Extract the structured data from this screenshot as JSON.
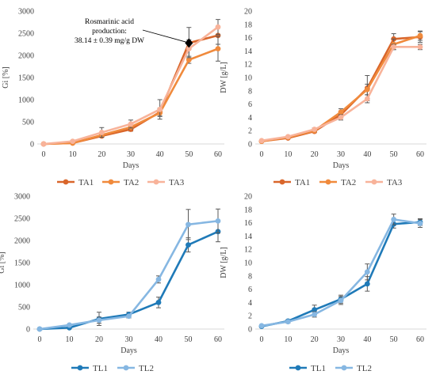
{
  "chart_data": [
    {
      "type": "line",
      "xlabel": "Days",
      "ylabel": "Gi [%]",
      "x": [
        0,
        10,
        20,
        30,
        40,
        50,
        60
      ],
      "xlim": [
        0,
        60
      ],
      "ylim": [
        0,
        3000
      ],
      "yticks": [
        0,
        500,
        1000,
        1500,
        2000,
        2500,
        3000
      ],
      "grid": false,
      "legend_position": "bottom",
      "series": [
        {
          "name": "TA1",
          "color": "#d9662b",
          "values": [
            0,
            20,
            180,
            330,
            720,
            2280,
            2450
          ],
          "errors": [
            0,
            0,
            30,
            40,
            90,
            350,
            200
          ]
        },
        {
          "name": "TA2",
          "color": "#f08a3c",
          "values": [
            0,
            20,
            200,
            380,
            700,
            1900,
            2150
          ],
          "errors": [
            0,
            0,
            40,
            50,
            80,
            80,
            280
          ]
        },
        {
          "name": "TA3",
          "color": "#f8b39a",
          "values": [
            0,
            60,
            260,
            450,
            780,
            2150,
            2640
          ],
          "errors": [
            0,
            20,
            110,
            90,
            220,
            200,
            170
          ]
        }
      ],
      "annotation": {
        "lines": [
          "Rosmarinic acid",
          "production:",
          "38.14 ± 0.39 mg/g DW"
        ],
        "target_x": 50,
        "target_y": 2280
      }
    },
    {
      "type": "line",
      "xlabel": "Days",
      "ylabel": "DW [g/L]",
      "x": [
        0,
        10,
        20,
        30,
        40,
        50,
        60
      ],
      "xlim": [
        0,
        60
      ],
      "ylim": [
        0,
        20
      ],
      "yticks": [
        0,
        2,
        4,
        6,
        8,
        10,
        12,
        14,
        16,
        18,
        20
      ],
      "grid": false,
      "legend_position": "bottom",
      "series": [
        {
          "name": "TA1",
          "color": "#d9662b",
          "values": [
            0.4,
            0.9,
            1.9,
            4.4,
            8.4,
            15.8,
            16.1
          ],
          "errors": [
            0.1,
            0.1,
            0.2,
            0.5,
            1.9,
            0.8,
            0.8
          ]
        },
        {
          "name": "TA2",
          "color": "#f08a3c",
          "values": [
            0.4,
            1.0,
            2.0,
            4.8,
            8.2,
            15.0,
            16.3
          ],
          "errors": [
            0.1,
            0.1,
            0.2,
            0.5,
            0.8,
            0.8,
            0.7
          ]
        },
        {
          "name": "TA3",
          "color": "#f8b39a",
          "values": [
            0.5,
            1.1,
            2.2,
            4.0,
            6.8,
            14.6,
            14.6
          ],
          "errors": [
            0.1,
            0.1,
            0.2,
            0.4,
            0.6,
            0.4,
            0.4
          ]
        }
      ]
    },
    {
      "type": "line",
      "xlabel": "Days",
      "ylabel": "Gi [%]",
      "x": [
        0,
        10,
        20,
        30,
        40,
        50,
        60
      ],
      "xlim": [
        0,
        60
      ],
      "ylim": [
        0,
        3000
      ],
      "yticks": [
        0,
        500,
        1000,
        1500,
        2000,
        2500,
        3000
      ],
      "grid": false,
      "legend_position": "bottom",
      "series": [
        {
          "name": "TL1",
          "color": "#1f7ab8",
          "values": [
            0,
            30,
            230,
            330,
            600,
            1900,
            2200
          ],
          "errors": [
            0,
            10,
            150,
            50,
            120,
            160,
            230
          ]
        },
        {
          "name": "TL2",
          "color": "#86b7e2",
          "values": [
            0,
            90,
            200,
            290,
            1120,
            2360,
            2440
          ],
          "errors": [
            0,
            20,
            70,
            40,
            80,
            340,
            270
          ]
        }
      ]
    },
    {
      "type": "line",
      "xlabel": "Days",
      "ylabel": "DW [g/L]",
      "x": [
        0,
        10,
        20,
        30,
        40,
        50,
        60
      ],
      "xlim": [
        0,
        60
      ],
      "ylim": [
        0,
        20
      ],
      "yticks": [
        0,
        2,
        4,
        6,
        8,
        10,
        12,
        14,
        16,
        18,
        20
      ],
      "grid": false,
      "legend_position": "bottom",
      "series": [
        {
          "name": "TL1",
          "color": "#1f7ab8",
          "values": [
            0.4,
            1.2,
            2.9,
            4.5,
            6.8,
            15.8,
            16.1
          ],
          "errors": [
            0.1,
            0.2,
            0.7,
            0.6,
            1.1,
            0.6,
            0.5
          ]
        },
        {
          "name": "TL2",
          "color": "#86b7e2",
          "values": [
            0.5,
            1.1,
            2.2,
            4.3,
            8.6,
            16.5,
            15.9
          ],
          "errors": [
            0.1,
            0.2,
            0.4,
            0.6,
            1.2,
            0.8,
            0.6
          ]
        }
      ]
    }
  ]
}
